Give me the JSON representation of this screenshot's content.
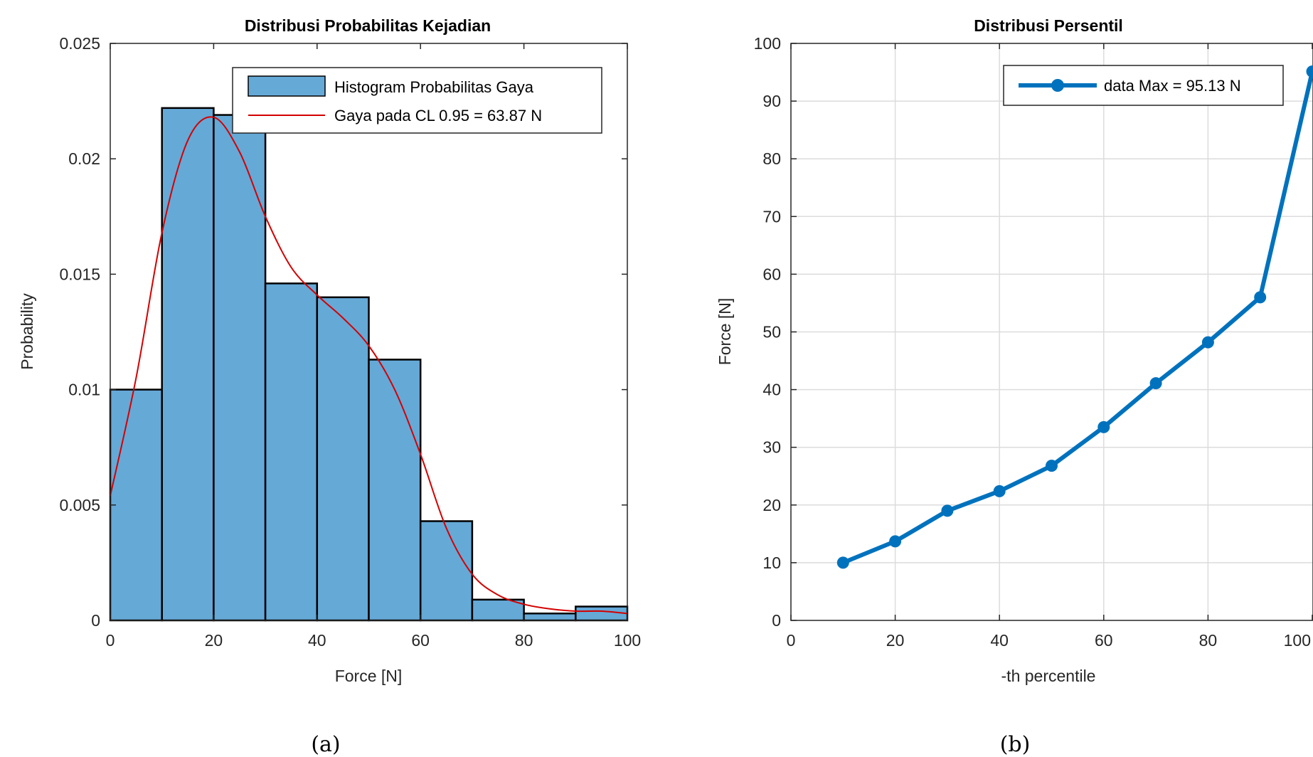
{
  "colors": {
    "bar_fill": "#65a9d7",
    "bar_edge": "#000000",
    "fit_line": "#d40000",
    "series_line": "#0072bd",
    "grid": "#dcdcdc",
    "axis": "#262626"
  },
  "chart_data": [
    {
      "type": "bar",
      "panel": "a",
      "caption": "(a)",
      "title": "Distribusi Probabilitas Kejadian",
      "xlabel": "Force [N]",
      "ylabel": "Probability",
      "xlim": [
        0,
        100
      ],
      "ylim": [
        0,
        0.025
      ],
      "xticks": [
        0,
        20,
        40,
        60,
        80,
        100
      ],
      "xtick_labels": [
        "0",
        "20",
        "40",
        "60",
        "80",
        "100"
      ],
      "yticks": [
        0,
        0.005,
        0.01,
        0.015,
        0.02,
        0.025
      ],
      "ytick_labels": [
        "0",
        "0.005",
        "0.01",
        "0.015",
        "0.02",
        "0.025"
      ],
      "grid": false,
      "legend_position": "top-right",
      "bin_edges": [
        0,
        10,
        20,
        30,
        40,
        50,
        60,
        70,
        80,
        90,
        100
      ],
      "values": [
        0.01,
        0.0222,
        0.0219,
        0.0146,
        0.014,
        0.0113,
        0.0043,
        0.0009,
        0.0003,
        0.0006
      ],
      "series": [
        {
          "name": "Histogram Probabilitas Gaya",
          "kind": "histogram"
        },
        {
          "name": "Gaya pada CL 0.95 = 63.87 N",
          "kind": "line",
          "x": [
            0,
            5,
            10,
            15,
            20,
            25,
            30,
            35,
            40,
            45,
            50,
            55,
            60,
            65,
            70,
            75,
            80,
            85,
            90,
            95,
            100
          ],
          "y": [
            0.0054,
            0.0105,
            0.0168,
            0.0208,
            0.0218,
            0.0203,
            0.0175,
            0.0153,
            0.0141,
            0.0131,
            0.0119,
            0.01,
            0.0072,
            0.004,
            0.002,
            0.0011,
            0.0007,
            0.0005,
            0.0004,
            0.0004,
            0.0003
          ]
        }
      ]
    },
    {
      "type": "line",
      "panel": "b",
      "caption": "(b)",
      "title": "Distribusi Persentil",
      "xlabel": "-th percentile",
      "ylabel": "Force [N]",
      "xlim": [
        0,
        100
      ],
      "ylim": [
        0,
        100
      ],
      "xticks": [
        0,
        20,
        40,
        60,
        80,
        100
      ],
      "xtick_labels": [
        "0",
        "20",
        "40",
        "60",
        "80",
        "100"
      ],
      "yticks": [
        0,
        10,
        20,
        30,
        40,
        50,
        60,
        70,
        80,
        90,
        100
      ],
      "ytick_labels": [
        "0",
        "10",
        "20",
        "30",
        "40",
        "50",
        "60",
        "70",
        "80",
        "90",
        "100"
      ],
      "grid": true,
      "legend_position": "top-right",
      "series": [
        {
          "name": "data Max = 95.13 N",
          "x": [
            10,
            20,
            30,
            40,
            50,
            60,
            70,
            80,
            90,
            100
          ],
          "y": [
            10.0,
            13.7,
            19.0,
            22.4,
            26.8,
            33.5,
            41.1,
            48.2,
            56.0,
            95.13
          ]
        }
      ]
    }
  ]
}
